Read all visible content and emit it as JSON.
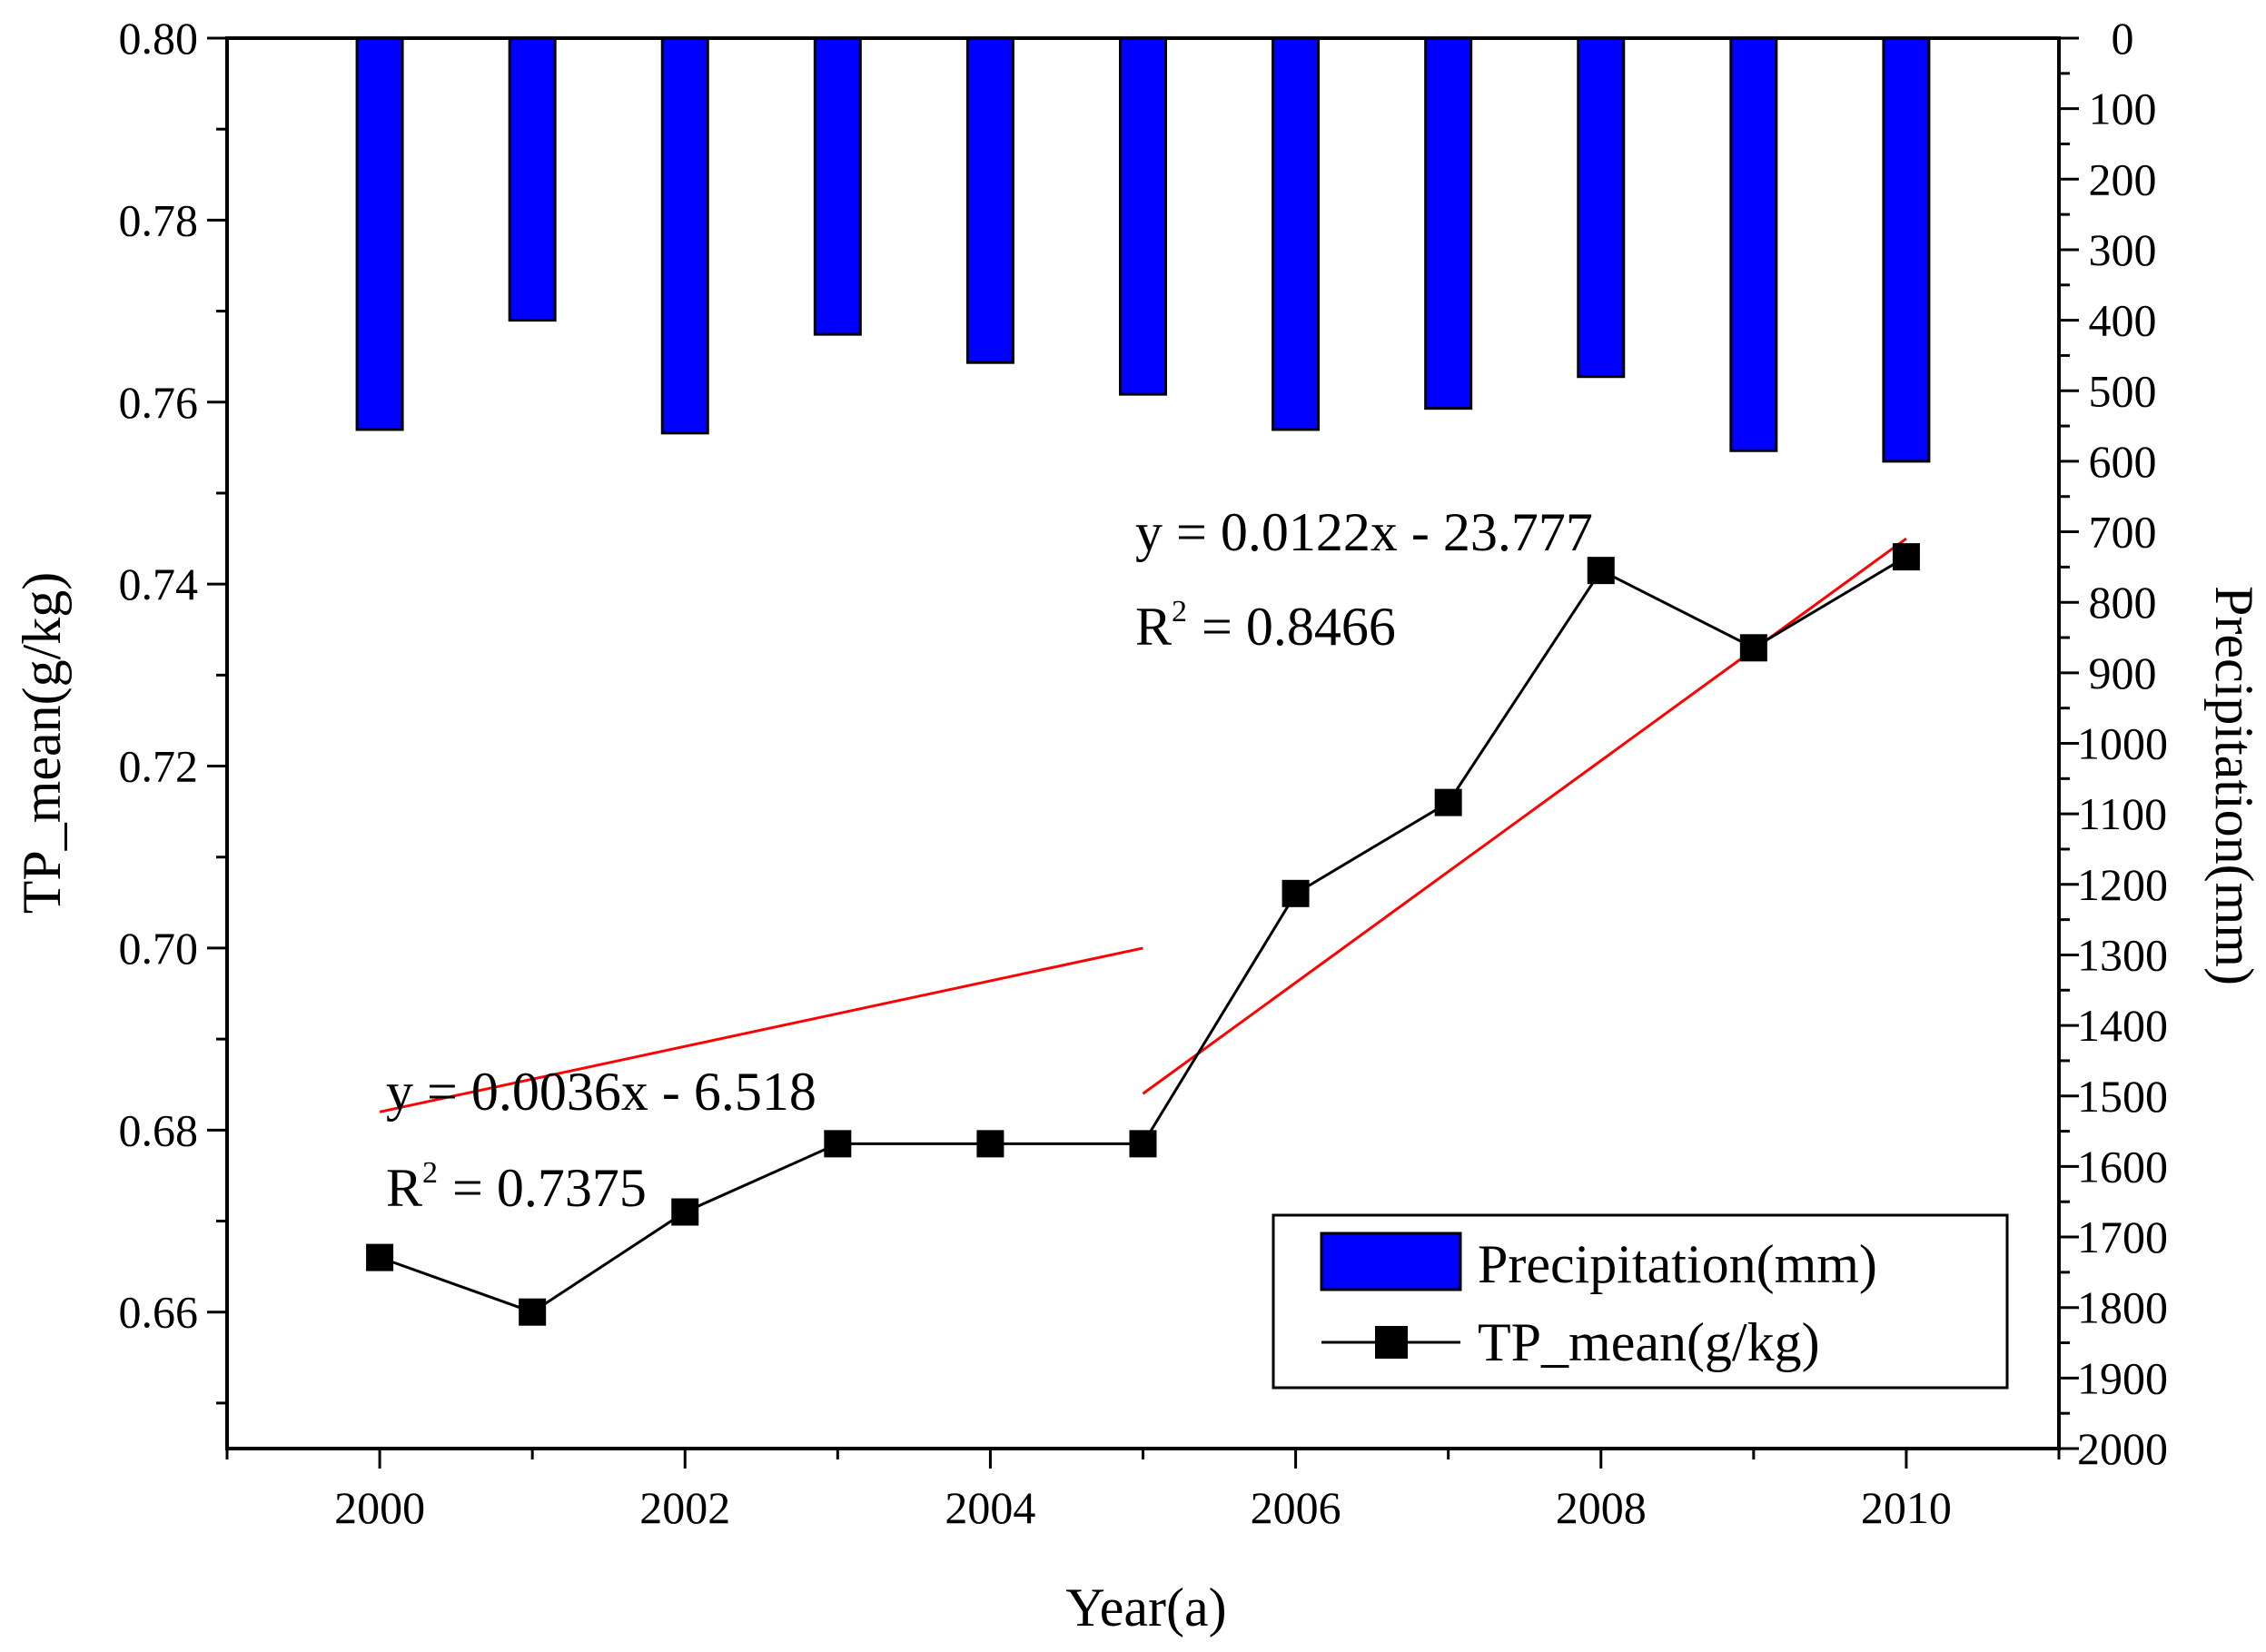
{
  "chart_data": {
    "type": "bar+line",
    "xlabel": "Year(a)",
    "ylabel_left": "TP_mean(g/kg)",
    "ylabel_right": "Precipitation(mm)",
    "x_ticks": [
      2000,
      2002,
      2004,
      2006,
      2008,
      2010
    ],
    "xlim": [
      1999,
      2011
    ],
    "ylim_left": [
      0.645,
      0.8
    ],
    "y_ticks_left": [
      "0.66",
      "0.68",
      "0.70",
      "0.72",
      "0.74",
      "0.76",
      "0.78",
      "0.80"
    ],
    "ylim_right": [
      0,
      2000
    ],
    "y_right_inverted": true,
    "y_ticks_right": [
      "0",
      "100",
      "200",
      "300",
      "400",
      "500",
      "600",
      "700",
      "800",
      "900",
      "1000",
      "1100",
      "1200",
      "1300",
      "1400",
      "1500",
      "1600",
      "1700",
      "1800",
      "1900",
      "2000"
    ],
    "years": [
      2000,
      2001,
      2002,
      2003,
      2004,
      2005,
      2006,
      2007,
      2008,
      2009,
      2010
    ],
    "series": [
      {
        "name": "Precipitation(mm)",
        "type": "bar",
        "axis": "right",
        "color": "#0000ff",
        "values": [
          555,
          400,
          560,
          420,
          460,
          505,
          555,
          525,
          480,
          585,
          600
        ]
      },
      {
        "name": "TP_mean(g/kg)",
        "type": "line",
        "axis": "left",
        "color": "#000000",
        "marker": "square",
        "values": [
          0.666,
          0.66,
          0.671,
          0.6785,
          0.6785,
          0.6785,
          0.706,
          0.716,
          0.7415,
          0.733,
          0.743
        ]
      }
    ],
    "fits": [
      {
        "equation": "y = 0.0036x - 6.518",
        "r2_label": "R",
        "r2_sup": "2",
        "r2_value": "= 0.7375",
        "slope": 0.0036,
        "intercept": -6.518,
        "x_range": [
          2000,
          2005
        ],
        "color": "#ff0000"
      },
      {
        "equation": "y = 0.0122x - 23.777",
        "r2_label": "R",
        "r2_sup": "2",
        "r2_value": "= 0.8466",
        "slope": 0.0122,
        "intercept": -23.777,
        "x_range": [
          2005,
          2010
        ],
        "color": "#ff0000"
      }
    ],
    "legend": {
      "placement": "bottom-right",
      "entries": [
        "Precipitation(mm)",
        "TP_mean(g/kg)"
      ]
    }
  }
}
